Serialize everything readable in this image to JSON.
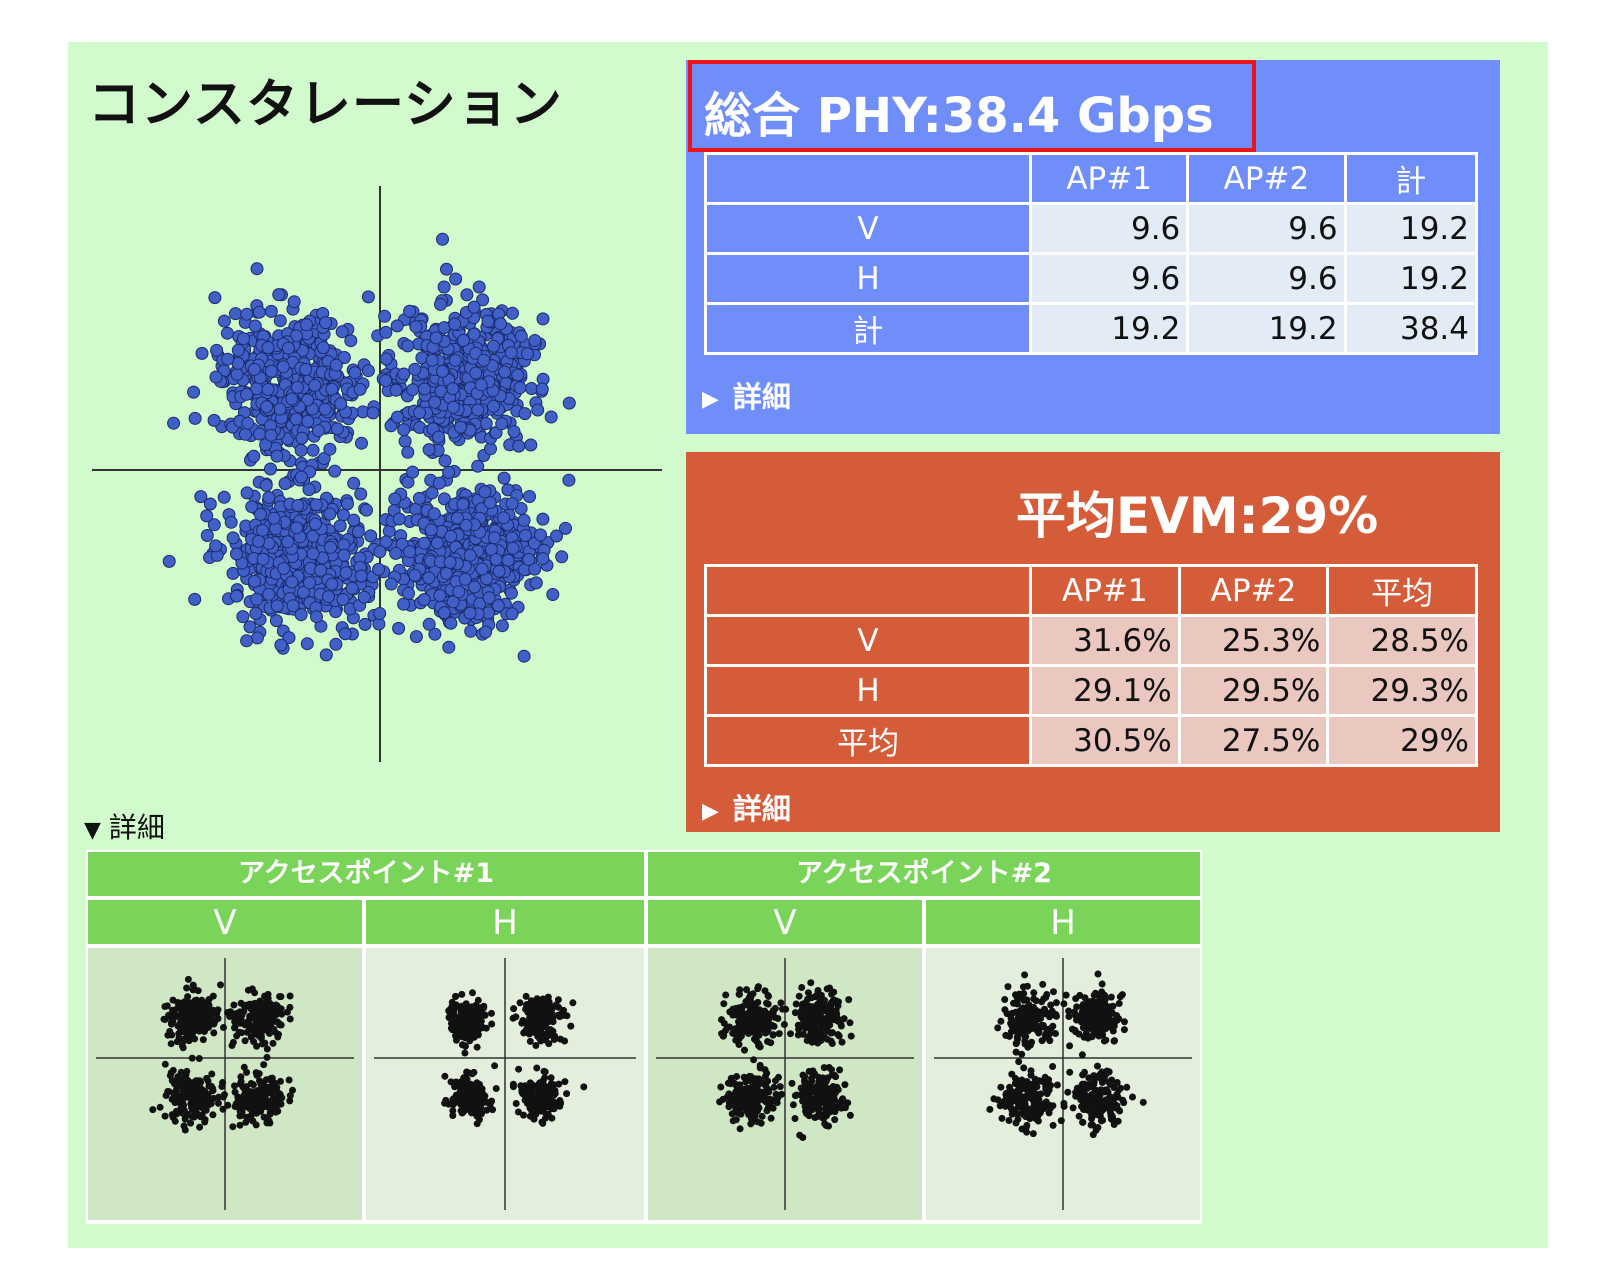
{
  "title": "コンスタレーション",
  "phy": {
    "title": "総合 PHY:38.4 Gbps",
    "columns": [
      "AP#1",
      "AP#2",
      "計"
    ],
    "rows": [
      {
        "label": "V",
        "values": [
          "9.6",
          "9.6",
          "19.2"
        ]
      },
      {
        "label": "H",
        "values": [
          "9.6",
          "9.6",
          "19.2"
        ]
      },
      {
        "label": "計",
        "values": [
          "19.2",
          "19.2",
          "38.4"
        ]
      }
    ],
    "detail_label": "詳細",
    "accent_color": "#6f8ef9",
    "highlight_color": "#e8161b"
  },
  "evm": {
    "title": "平均EVM:29%",
    "columns": [
      "AP#1",
      "AP#2",
      "平均"
    ],
    "rows": [
      {
        "label": "V",
        "values": [
          "31.6%",
          "25.3%",
          "28.5%"
        ]
      },
      {
        "label": "H",
        "values": [
          "29.1%",
          "29.5%",
          "29.3%"
        ]
      },
      {
        "label": "平均",
        "values": [
          "30.5%",
          "27.5%",
          "29%"
        ]
      }
    ],
    "detail_label": "詳細",
    "accent_color": "#d45c39"
  },
  "details": {
    "toggle_label": "詳細",
    "access_points": [
      {
        "label": "アクセスポイント#1",
        "polarizations": [
          "V",
          "H"
        ]
      },
      {
        "label": "アクセスポイント#2",
        "polarizations": [
          "V",
          "H"
        ]
      }
    ]
  },
  "icons": {
    "collapsed": "triangle-right-icon",
    "expanded": "triangle-down-icon"
  },
  "colors": {
    "background": "#d2fbcd",
    "header_green": "#7bd45a",
    "point_blue": "#4060c8"
  }
}
